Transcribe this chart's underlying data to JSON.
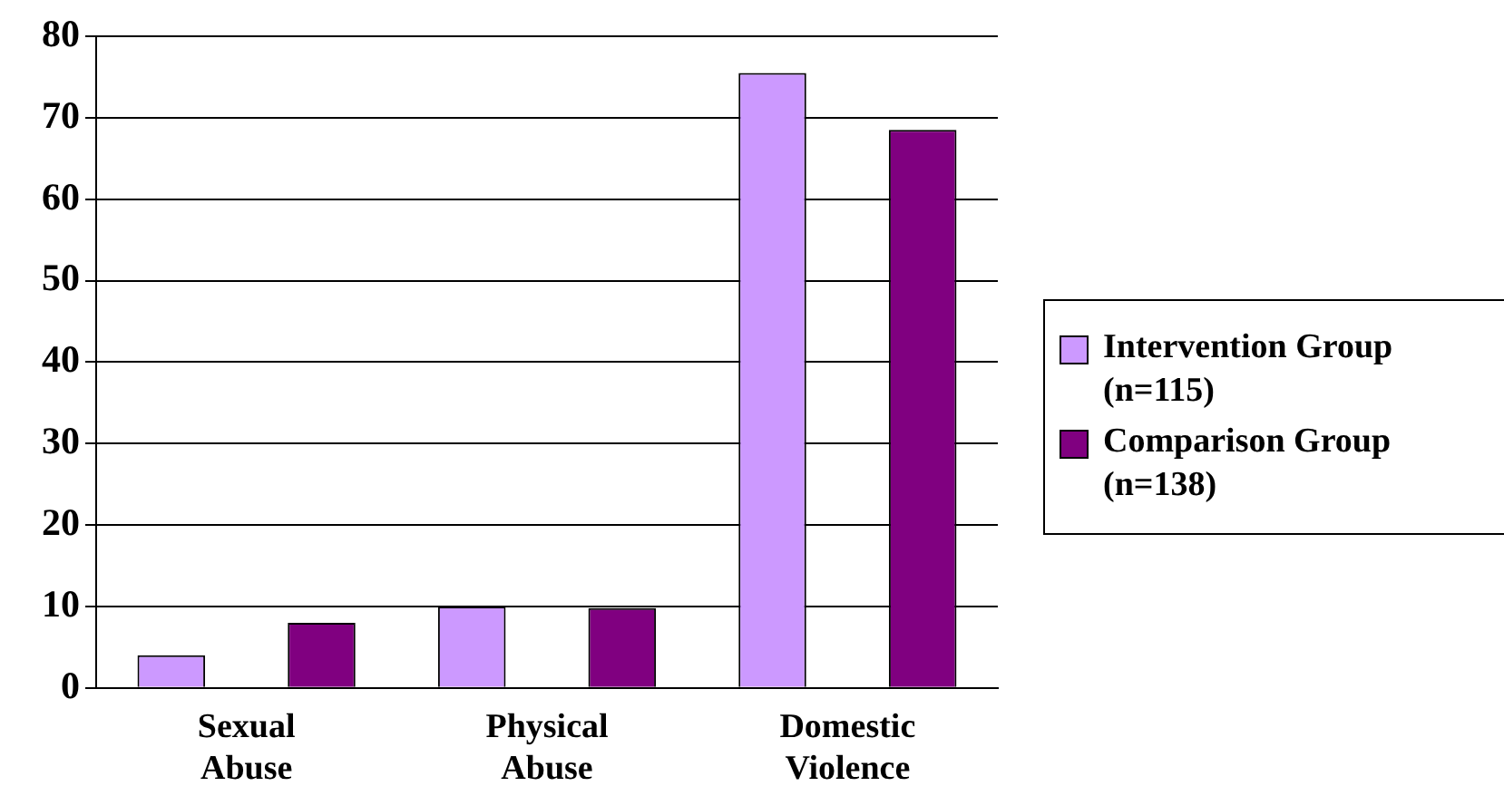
{
  "chart_data": {
    "type": "bar",
    "categories": [
      "Sexual Abuse",
      "Physical Abuse",
      "Domestic Violence"
    ],
    "series": [
      {
        "name": "Intervention Group (n=115)",
        "color": "#cc99ff",
        "values": [
          4,
          10,
          75.5
        ]
      },
      {
        "name": "Comparison Group (n=138)",
        "color": "#800080",
        "values": [
          8,
          9.8,
          68.5
        ]
      }
    ],
    "ylim": [
      0,
      80
    ],
    "yticks": [
      0,
      10,
      20,
      30,
      40,
      50,
      60,
      70,
      80
    ],
    "grid": "y",
    "legend": "right"
  }
}
